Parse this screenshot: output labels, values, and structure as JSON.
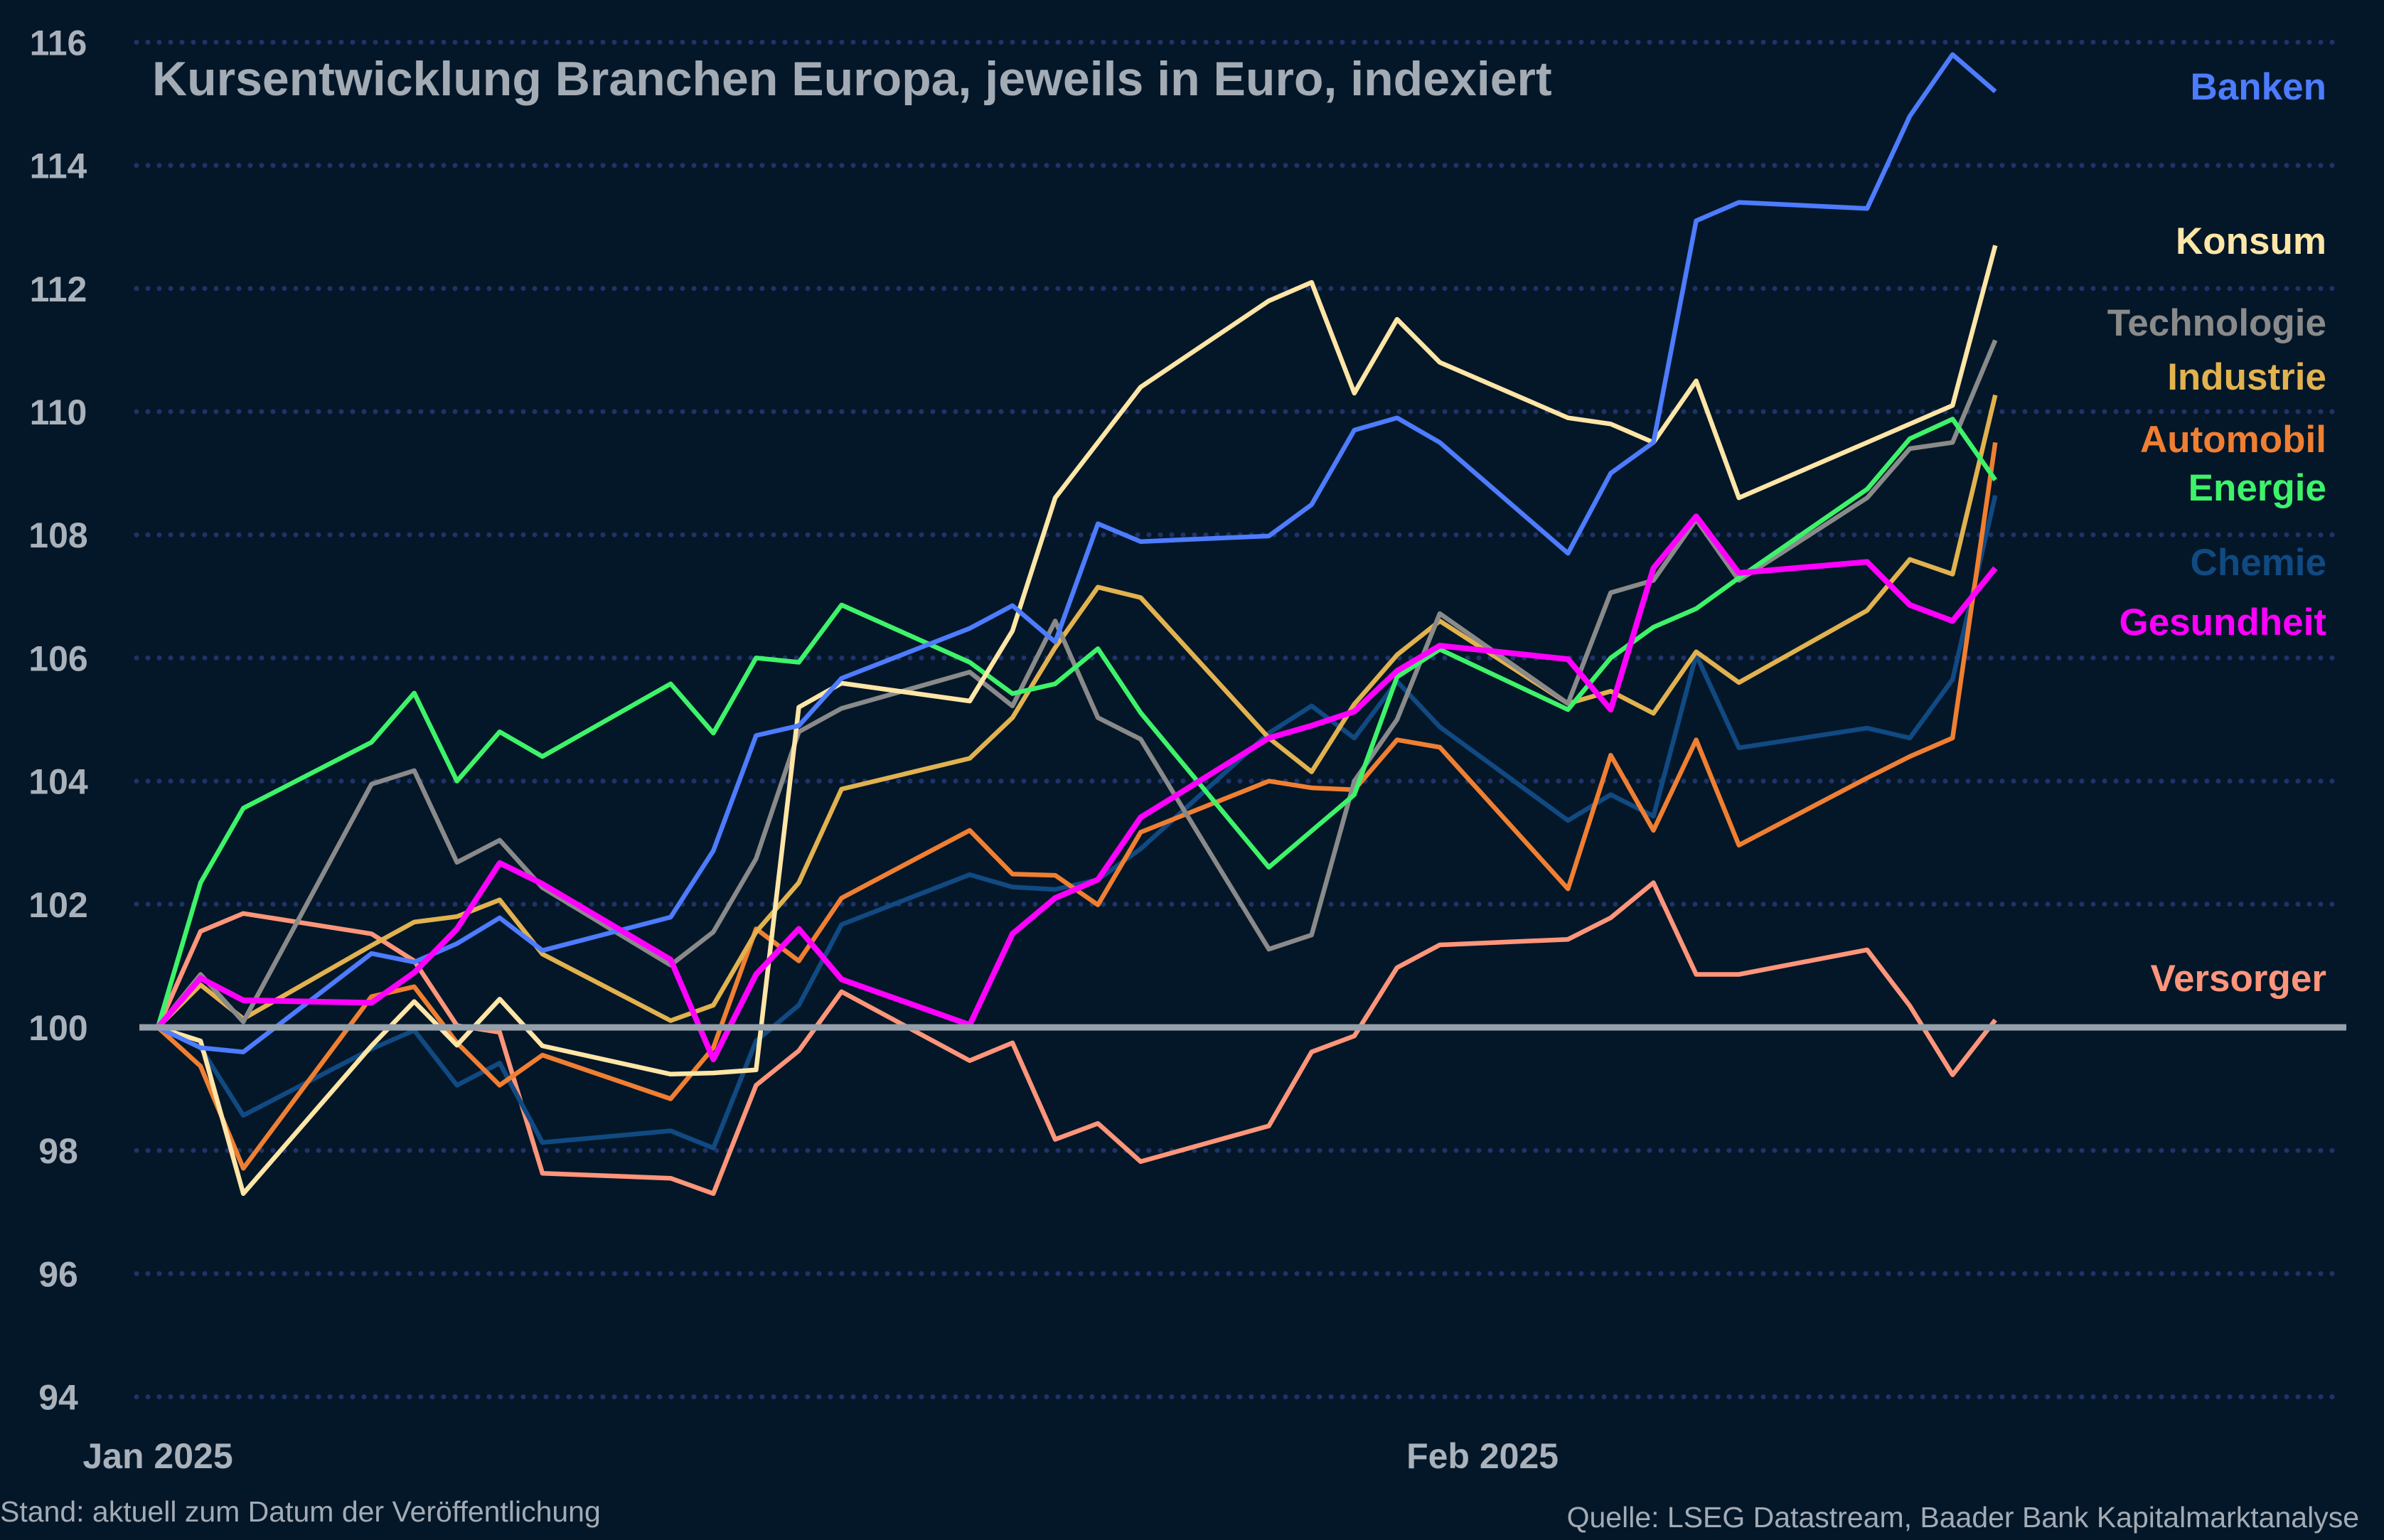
{
  "chart_data": {
    "type": "line",
    "title": "Kursentwicklung Branchen Europa, jeweils in Euro, indexiert",
    "xlabel": "",
    "ylabel": "",
    "ylim": [
      94,
      116
    ],
    "yticks": [
      94,
      96,
      98,
      100,
      102,
      104,
      106,
      108,
      110,
      112,
      114,
      116
    ],
    "xticks": [
      {
        "date": "2025-01-01",
        "label": "Jan 2025"
      },
      {
        "date": "2025-02-01",
        "label": "Feb 2025"
      }
    ],
    "grid": "horizontal dotted",
    "baseline": 100,
    "legend": "right, labels beside lines",
    "x": [
      "2025-01-01",
      "2025-01-02",
      "2025-01-03",
      "2025-01-06",
      "2025-01-07",
      "2025-01-08",
      "2025-01-09",
      "2025-01-10",
      "2025-01-13",
      "2025-01-14",
      "2025-01-15",
      "2025-01-16",
      "2025-01-17",
      "2025-01-20",
      "2025-01-21",
      "2025-01-22",
      "2025-01-23",
      "2025-01-24",
      "2025-01-27",
      "2025-01-28",
      "2025-01-29",
      "2025-01-30",
      "2025-01-31",
      "2025-02-03",
      "2025-02-04",
      "2025-02-05",
      "2025-02-06",
      "2025-02-07",
      "2025-02-10",
      "2025-02-11",
      "2025-02-12",
      "2025-02-13"
    ],
    "series": [
      {
        "name": "Banken",
        "color": "#4d7cff",
        "values": [
          100,
          99.67,
          99.6,
          101.2,
          101.06,
          101.36,
          101.78,
          101.25,
          101.79,
          102.87,
          104.74,
          104.9,
          105.67,
          106.48,
          106.85,
          106.26,
          108.18,
          107.89,
          107.98,
          108.49,
          109.7,
          109.9,
          109.5,
          107.7,
          109.0,
          109.5,
          113.1,
          113.4,
          113.3,
          114.8,
          115.8,
          115.2
        ]
      },
      {
        "name": "Konsum",
        "color": "#ffe6a6",
        "values": [
          100,
          99.78,
          97.3,
          99.7,
          100.42,
          99.71,
          100.46,
          99.7,
          99.24,
          99.26,
          99.31,
          105.2,
          105.59,
          105.3,
          106.44,
          108.6,
          109.5,
          110.4,
          111.8,
          112.1,
          110.3,
          111.5,
          110.8,
          109.9,
          109.8,
          109.5,
          110.5,
          108.6,
          109.5,
          109.8,
          110.1,
          112.7
        ]
      },
      {
        "name": "Technologie",
        "color": "#8a8a8a",
        "values": [
          100,
          100.86,
          100.09,
          103.95,
          104.17,
          102.68,
          103.04,
          102.27,
          101.01,
          101.55,
          102.74,
          104.8,
          105.18,
          105.77,
          105.22,
          106.6,
          105.03,
          104.68,
          101.27,
          101.5,
          104.0,
          105.0,
          106.72,
          105.26,
          107.06,
          107.26,
          108.25,
          107.26,
          108.6,
          109.4,
          109.5,
          111.16
        ]
      },
      {
        "name": "Industrie",
        "color": "#e1b24f",
        "values": [
          100,
          100.69,
          100.14,
          101.33,
          101.71,
          101.8,
          102.07,
          101.19,
          100.11,
          100.36,
          101.55,
          102.35,
          103.87,
          104.37,
          105.03,
          106.17,
          107.15,
          106.98,
          104.7,
          104.15,
          105.25,
          106.05,
          106.6,
          105.26,
          105.46,
          105.1,
          106.1,
          105.6,
          106.77,
          107.6,
          107.36,
          110.27
        ]
      },
      {
        "name": "Automobil",
        "color": "#f07f32",
        "values": [
          100,
          99.37,
          97.71,
          100.5,
          100.66,
          99.75,
          99.06,
          99.55,
          98.84,
          99.67,
          101.6,
          101.08,
          102.1,
          103.2,
          102.49,
          102.47,
          101.99,
          103.17,
          104.0,
          103.89,
          103.86,
          104.67,
          104.55,
          102.25,
          104.42,
          103.2,
          104.67,
          102.96,
          104.05,
          104.4,
          104.7,
          109.5
        ]
      },
      {
        "name": "Energie",
        "color": "#3ef36a",
        "values": [
          100,
          102.35,
          103.56,
          104.63,
          105.43,
          104.0,
          104.8,
          104.4,
          105.58,
          104.78,
          106.0,
          105.93,
          106.86,
          105.93,
          105.42,
          105.58,
          106.15,
          105.11,
          102.6,
          103.19,
          103.78,
          105.69,
          106.14,
          105.16,
          106.0,
          106.5,
          106.8,
          107.3,
          108.74,
          109.56,
          109.88,
          108.89
        ]
      },
      {
        "name": "Chemie",
        "color": "#114a82",
        "values": [
          100,
          99.67,
          98.57,
          99.65,
          99.95,
          99.06,
          99.42,
          98.13,
          98.32,
          98.04,
          99.78,
          100.36,
          101.67,
          102.48,
          102.28,
          102.24,
          102.4,
          102.9,
          104.78,
          105.22,
          104.7,
          105.62,
          104.88,
          103.36,
          103.78,
          103.43,
          106.05,
          104.54,
          104.86,
          104.7,
          105.65,
          108.64
        ]
      },
      {
        "name": "Gesundheit",
        "color": "#ff00ff",
        "values": [
          100,
          100.8,
          100.44,
          100.4,
          100.89,
          101.6,
          102.67,
          102.33,
          101.1,
          99.48,
          100.86,
          101.6,
          100.78,
          100.04,
          101.52,
          102.1,
          102.4,
          103.41,
          104.7,
          104.9,
          105.13,
          105.79,
          106.2,
          105.98,
          105.16,
          107.46,
          108.3,
          107.38,
          107.56,
          106.86,
          106.6,
          107.46
        ]
      },
      {
        "name": "Versorger",
        "color": "#ff957a",
        "values": [
          100,
          101.56,
          101.85,
          101.52,
          101.08,
          100.03,
          99.92,
          97.63,
          97.55,
          97.3,
          99.06,
          99.62,
          100.58,
          99.46,
          99.75,
          98.18,
          98.44,
          97.82,
          98.4,
          99.6,
          99.86,
          100.97,
          101.34,
          101.43,
          101.78,
          102.35,
          100.86,
          100.86,
          101.26,
          100.35,
          99.23,
          100.12
        ]
      }
    ]
  },
  "footer": {
    "left": "Stand: aktuell zum Datum der Veröffentlichung",
    "right": "Quelle: LSEG Datastream, Baader Bank Kapitalmarktanalyse"
  },
  "colors": {
    "background": "#041729",
    "grid": "#1f3368",
    "baseline": "#95a0ab"
  }
}
